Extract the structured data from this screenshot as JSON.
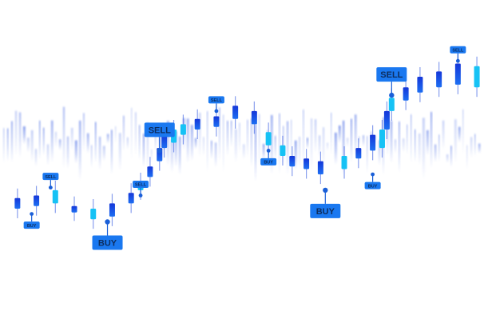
{
  "chart_data": {
    "type": "candlestick",
    "title": "",
    "xlabel": "",
    "ylabel": "",
    "ylim": [
      0,
      100
    ],
    "grid": false,
    "legend": "none",
    "colors": {
      "candle_dark": "#1537d9",
      "candle_light": "#16c2f5",
      "wick": "#2a52e0",
      "label_bg": "#1a78f0"
    },
    "candles": [
      {
        "x": 2,
        "open": 34,
        "close": 30
      },
      {
        "x": 6,
        "open": 35,
        "close": 31
      },
      {
        "x": 10,
        "open": 37,
        "close": 32
      },
      {
        "x": 14,
        "open": 31,
        "close": 29
      },
      {
        "x": 18,
        "open": 30,
        "close": 26
      },
      {
        "x": 22,
        "open": 32,
        "close": 27
      },
      {
        "x": 26,
        "open": 36,
        "close": 32
      },
      {
        "x": 28,
        "open": 40,
        "close": 37
      },
      {
        "x": 30,
        "open": 46,
        "close": 42
      },
      {
        "x": 32,
        "open": 53,
        "close": 48
      },
      {
        "x": 33,
        "open": 58,
        "close": 53
      },
      {
        "x": 35,
        "open": 60,
        "close": 55
      },
      {
        "x": 37,
        "open": 62,
        "close": 58
      },
      {
        "x": 40,
        "open": 64,
        "close": 60
      },
      {
        "x": 44,
        "open": 65,
        "close": 61
      },
      {
        "x": 48,
        "open": 69,
        "close": 64
      },
      {
        "x": 52,
        "open": 67,
        "close": 62
      },
      {
        "x": 55,
        "open": 59,
        "close": 54
      },
      {
        "x": 58,
        "open": 54,
        "close": 50
      },
      {
        "x": 60,
        "open": 50,
        "close": 46
      },
      {
        "x": 63,
        "open": 49,
        "close": 45
      },
      {
        "x": 66,
        "open": 48,
        "close": 43
      },
      {
        "x": 71,
        "open": 50,
        "close": 45
      },
      {
        "x": 74,
        "open": 53,
        "close": 49
      },
      {
        "x": 77,
        "open": 58,
        "close": 52
      },
      {
        "x": 79,
        "open": 60,
        "close": 53
      },
      {
        "x": 80,
        "open": 67,
        "close": 60
      },
      {
        "x": 81,
        "open": 72,
        "close": 67
      },
      {
        "x": 84,
        "open": 76,
        "close": 71
      },
      {
        "x": 87,
        "open": 80,
        "close": 74
      },
      {
        "x": 91,
        "open": 82,
        "close": 76
      },
      {
        "x": 95,
        "open": 85,
        "close": 77
      },
      {
        "x": 99,
        "open": 84,
        "close": 76
      }
    ],
    "signals": [
      {
        "label": "BUY",
        "x": 5,
        "y": 28,
        "size": "small"
      },
      {
        "label": "SELL",
        "x": 9,
        "y": 38,
        "size": "small"
      },
      {
        "label": "BUY",
        "x": 21,
        "y": 25,
        "size": "large"
      },
      {
        "label": "SELL",
        "x": 28,
        "y": 35,
        "size": "small"
      },
      {
        "label": "SELL",
        "x": 32,
        "y": 52,
        "size": "large"
      },
      {
        "label": "SELL",
        "x": 44,
        "y": 67,
        "size": "small"
      },
      {
        "label": "BUY",
        "x": 55,
        "y": 52,
        "size": "small"
      },
      {
        "label": "BUY",
        "x": 67,
        "y": 37,
        "size": "large"
      },
      {
        "label": "BUY",
        "x": 77,
        "y": 43,
        "size": "small"
      },
      {
        "label": "SELL",
        "x": 81,
        "y": 73,
        "size": "large"
      },
      {
        "label": "SELL",
        "x": 95,
        "y": 86,
        "size": "small"
      }
    ]
  }
}
